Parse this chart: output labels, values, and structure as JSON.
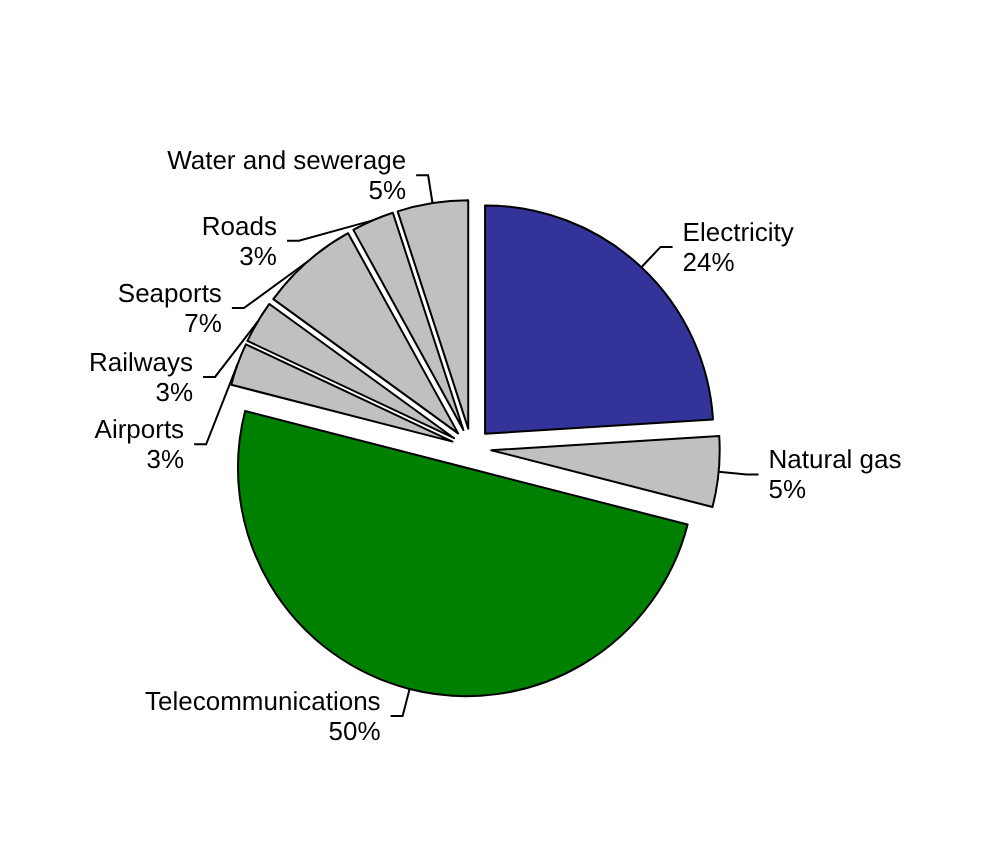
{
  "chart_data": {
    "type": "pie",
    "categories": [
      "Electricity",
      "Natural gas",
      "Telecommunications",
      "Airports",
      "Railways",
      "Seaports",
      "Roads",
      "Water and sewerage"
    ],
    "values": [
      24,
      5,
      50,
      3,
      3,
      7,
      3,
      5
    ],
    "value_labels": [
      "24%",
      "5%",
      "50%",
      "3%",
      "3%",
      "7%",
      "3%",
      "5%"
    ],
    "colors": [
      "#333399",
      "#c0c0c0",
      "#008000",
      "#c0c0c0",
      "#c0c0c0",
      "#c0c0c0",
      "#c0c0c0",
      "#c0c0c0"
    ],
    "legend": false
  }
}
